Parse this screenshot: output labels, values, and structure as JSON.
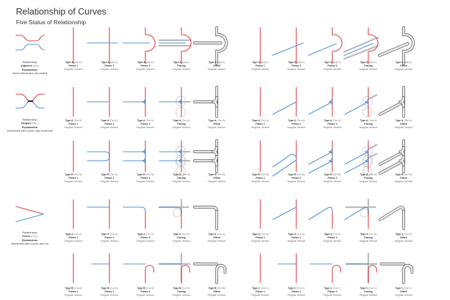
{
  "title": "Relationship of Curves",
  "subtitle": "Five Status of Relationship",
  "colors": {
    "primary_curve": "#e0393e",
    "secondary_curve": "#4a8fd6",
    "tracing": "#b8b8b8",
    "offset": "#555555"
  },
  "phases": [
    "Pahse 1",
    "Pahse 2",
    "Pahse 3",
    "Tracing",
    "Offset"
  ],
  "relationships": [
    {
      "heading": "Relationship",
      "name": "Adjacent",
      "code": "(Adj.)",
      "explain_label": "Explaination",
      "explain": "Never intersected, but related"
    },
    {
      "heading": "Relationship",
      "name": "Tangent",
      "code": "(Tan.)",
      "explain_label": "Explaination",
      "explain": "Intersected with a point, also continued"
    },
    {
      "heading": "Relationship",
      "name": "Corner",
      "code": "(Cor.)",
      "explain_label": "Explaination",
      "explain": "Intersected with a point, also cut"
    }
  ],
  "rows": [
    {
      "left": {
        "type": "Type A",
        "code": "(Adj.A)",
        "version": "Regular Version"
      },
      "right": {
        "type": "Type A",
        "code": "(Adj.A)",
        "version": "Irregular Version"
      }
    },
    {
      "left": {
        "type": "Type A",
        "code": "(Tan.A)",
        "version": "Regular Version"
      },
      "right": {
        "type": "Type A",
        "code": "(Tan.A)",
        "version": "Irregular Version"
      }
    },
    {
      "left": {
        "type": "Type B",
        "code": "(Tan.B)",
        "version": "Regular Version"
      },
      "right": {
        "type": "Type B",
        "code": "(Tan.B)",
        "version": "Irregular Version"
      }
    },
    {
      "left": {
        "type": "Type A",
        "code": "(Cor.A)",
        "version": "Regular Version"
      },
      "right": {
        "type": "Type A",
        "code": "(Cor.A)",
        "version": "Irregular Version"
      }
    },
    {
      "left": {
        "type": "Type B",
        "code": "(Cor.B)",
        "version": "Regular Version"
      },
      "right": {
        "type": "Type C",
        "code": "(Cor.C)",
        "version": "Regular Version"
      }
    }
  ]
}
